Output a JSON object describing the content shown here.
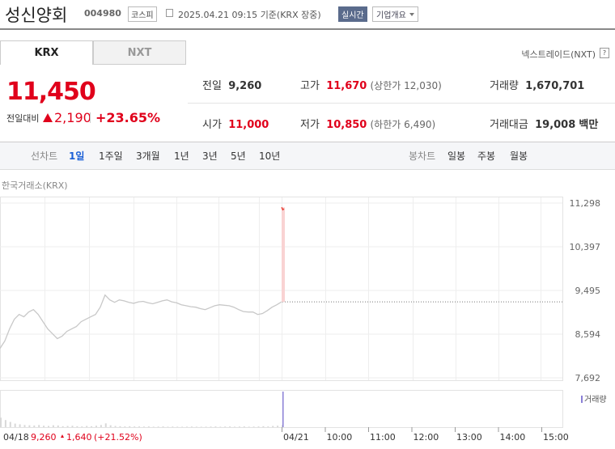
{
  "header": {
    "title": "성신양회",
    "code": "004980",
    "market": "코스피",
    "timestamp": "2025.04.21 09:15",
    "basis": "기준(KRX 장중)",
    "realtime_button": "실시간",
    "overview_button": "기업개요"
  },
  "tabs": [
    "KRX",
    "NXT"
  ],
  "nxt_link": "넥스트레이드(NXT)",
  "help_icon": "?",
  "price": {
    "current": "11,450",
    "change_label": "전일대비",
    "change": "2,190",
    "change_rate": "+23.65%"
  },
  "stats": [
    {
      "label": "전일",
      "value": "9,260"
    },
    {
      "label": "고가",
      "value": "11,670",
      "extra": "(상한가 12,030)"
    },
    {
      "label": "거래량",
      "value": "1,670,701"
    },
    {
      "label": "시가",
      "value": "11,000"
    },
    {
      "label": "저가",
      "value": "10,850",
      "extra": "(하한가 6,490)"
    },
    {
      "label": "거래대금",
      "value": "19,008",
      "unit": "백만"
    }
  ],
  "line_chart_label": "선차트",
  "periods": [
    "1일",
    "1주일",
    "3개월",
    "1년",
    "3년",
    "5년",
    "10년"
  ],
  "candle_label": "봉차트",
  "candle_periods": [
    "일봉",
    "주봉",
    "월봉"
  ],
  "chart": {
    "type": "line",
    "source": "한국거래소(KRX)",
    "ylim": [
      7692,
      11298
    ],
    "yticks": [
      {
        "value": 11298,
        "label": "11,298"
      },
      {
        "value": 10397,
        "label": "10,397"
      },
      {
        "value": 9495,
        "label": "9,495"
      },
      {
        "value": 8594,
        "label": "8,594"
      },
      {
        "value": 7692,
        "label": "7,692"
      }
    ],
    "reference": 9260,
    "previous": {
      "color": "#c8c8c8",
      "values": [
        8300,
        8450,
        8700,
        8900,
        9000,
        8950,
        9050,
        9100,
        9000,
        8850,
        8700,
        8600,
        8500,
        8550,
        8650,
        8700,
        8750,
        8850,
        8900,
        8950,
        9000,
        9150,
        9400,
        9300,
        9250,
        9300,
        9280,
        9250,
        9230,
        9260,
        9270,
        9240,
        9220,
        9250,
        9280,
        9300,
        9260,
        9240,
        9200,
        9180,
        9160,
        9150,
        9120,
        9100,
        9140,
        9180,
        9200,
        9190,
        9180,
        9150,
        9100,
        9060,
        9050,
        9050,
        9000,
        9020,
        9080,
        9150,
        9200,
        9260
      ]
    },
    "today": {
      "color": "#e8453c",
      "fill": "#f9d3d3",
      "values": [
        11210,
        11160,
        11180
      ]
    },
    "volume_label": "거래량",
    "volume": {
      "color": "#d8d8d8",
      "today_color": "#8a7fd6",
      "previous": [
        40000,
        30000,
        22000,
        15000,
        12000,
        9000,
        8000,
        7000,
        9000,
        6000,
        5000,
        8000,
        7000,
        4000,
        5000,
        6000,
        4000,
        3000,
        5000,
        4000,
        6000,
        9000,
        16000,
        8000,
        5000,
        4000,
        3000,
        4000,
        3000,
        3000,
        2500,
        3000,
        2000,
        2500,
        3000,
        2000,
        2500,
        2000,
        1800,
        2000,
        2500,
        2000,
        1800,
        2000,
        2500,
        3000,
        2000,
        2500,
        3000,
        2000,
        2500,
        3000,
        2000,
        2500,
        3000,
        4000,
        3000,
        5000,
        6000,
        9000
      ],
      "today": [
        150000
      ]
    },
    "xlabels": [
      "04/21",
      "10:00",
      "11:00",
      "12:00",
      "13:00",
      "14:00",
      "15:00"
    ]
  },
  "footer": {
    "date": "04/18",
    "close": "9,260",
    "change": "1,640",
    "rate": "(+21.52%)"
  }
}
